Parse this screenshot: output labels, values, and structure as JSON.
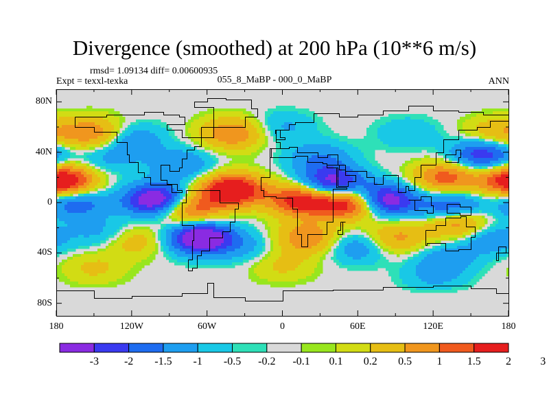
{
  "title": "Divergence (smoothed) at 200 hPa (10**6 m/s)",
  "stats": "rmsd= 1.09134 diff= 0.00600935",
  "expt": "Expt = texxl-texka",
  "period": "055_8_MaBP - 000_0_MaBP",
  "season": "ANN",
  "lat_ticks": [
    {
      "value": 80,
      "label": "80N"
    },
    {
      "value": 40,
      "label": "40N"
    },
    {
      "value": 0,
      "label": "0"
    },
    {
      "value": -40,
      "label": "40S"
    },
    {
      "value": -80,
      "label": "80S"
    }
  ],
  "lon_ticks": [
    {
      "value": -180,
      "label": "180"
    },
    {
      "value": -120,
      "label": "120W"
    },
    {
      "value": -60,
      "label": "60W"
    },
    {
      "value": 0,
      "label": "0"
    },
    {
      "value": 60,
      "label": "60E"
    },
    {
      "value": 120,
      "label": "120E"
    },
    {
      "value": 180,
      "label": "180"
    }
  ],
  "colorbar": {
    "colors": [
      "#8a2be2",
      "#3a3af0",
      "#1e6cf0",
      "#1e9ef0",
      "#19c8e6",
      "#2ee0b8",
      "#d9d9d9",
      "#98e61e",
      "#d2dc14",
      "#e6be14",
      "#f0961e",
      "#f05a1e",
      "#e61e1e"
    ],
    "labels": [
      "-3",
      "-2",
      "-1.5",
      "-1",
      "-0.5",
      "-0.2",
      "-0.1",
      "0.1",
      "0.2",
      "0.5",
      "1",
      "1.5",
      "2",
      "3"
    ],
    "levels": [
      -3,
      -2,
      -1.5,
      -1,
      -0.5,
      -0.2,
      -0.1,
      0.1,
      0.2,
      0.5,
      1,
      1.5,
      2,
      3
    ]
  },
  "chart_data": {
    "type": "heatmap",
    "title": "Divergence (smoothed) at 200 hPa (10**6 m/s)",
    "x_range": [
      -180,
      180
    ],
    "y_range": [
      -90,
      90
    ],
    "units": "10**6 m/s",
    "features": [
      {
        "lon": 80,
        "lat": 2,
        "value": -3.0
      },
      {
        "lon": -100,
        "lat": 2,
        "value": -3.0
      },
      {
        "lon": -65,
        "lat": -28,
        "value": -3.0
      },
      {
        "lon": 40,
        "lat": 15,
        "value": -2.5
      },
      {
        "lon": 160,
        "lat": 38,
        "value": -2.0
      },
      {
        "lon": 135,
        "lat": -5,
        "value": -2.0
      },
      {
        "lon": -165,
        "lat": 0,
        "value": -1.5
      },
      {
        "lon": -40,
        "lat": 10,
        "value": 3.0
      },
      {
        "lon": 55,
        "lat": 0,
        "value": 3.0
      },
      {
        "lon": 15,
        "lat": 2,
        "value": 2.5
      },
      {
        "lon": -175,
        "lat": 17,
        "value": 3.0
      },
      {
        "lon": -75,
        "lat": -5,
        "value": 2.0
      },
      {
        "lon": 140,
        "lat": -15,
        "value": 2.0
      },
      {
        "lon": -150,
        "lat": 55,
        "value": 1.5
      },
      {
        "lon": -40,
        "lat": 55,
        "value": 1.5
      },
      {
        "lon": 170,
        "lat": 55,
        "value": 1.0
      },
      {
        "lon": 20,
        "lat": -28,
        "value": 1.5
      },
      {
        "lon": -120,
        "lat": -30,
        "value": 1.0
      },
      {
        "lon": 90,
        "lat": -28,
        "value": 1.2
      },
      {
        "lon": 130,
        "lat": 20,
        "value": 1.8
      },
      {
        "lon": -120,
        "lat": 50,
        "value": -1.0
      },
      {
        "lon": -80,
        "lat": 30,
        "value": -1.0
      },
      {
        "lon": 30,
        "lat": 35,
        "value": -1.0
      },
      {
        "lon": 0,
        "lat": 60,
        "value": -0.6
      },
      {
        "lon": -140,
        "lat": 35,
        "value": -0.6
      },
      {
        "lon": 100,
        "lat": 55,
        "value": -0.5
      },
      {
        "lon": -140,
        "lat": -25,
        "value": -0.8
      },
      {
        "lon": 60,
        "lat": -35,
        "value": -1.0
      },
      {
        "lon": 130,
        "lat": -45,
        "value": -0.8
      },
      {
        "lon": 165,
        "lat": -28,
        "value": -1.0
      },
      {
        "lon": -30,
        "lat": -35,
        "value": -0.6
      },
      {
        "lon": 0,
        "lat": -50,
        "value": 0.6
      },
      {
        "lon": -150,
        "lat": -52,
        "value": 0.6
      },
      {
        "lon": 120,
        "lat": -60,
        "value": -0.5
      }
    ]
  }
}
